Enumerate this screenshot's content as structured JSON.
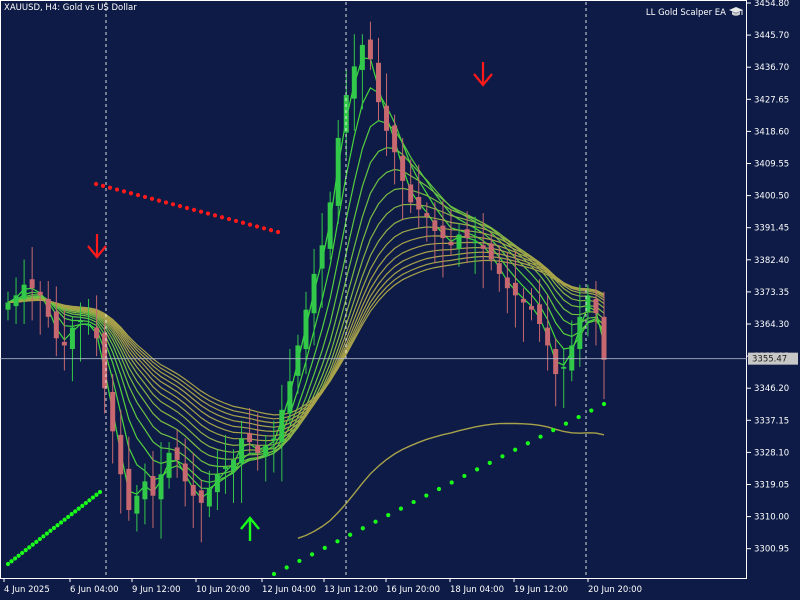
{
  "header": {
    "symbol_title": "XAUUSD, H4:  Gold vs US Dollar",
    "ea_label": "LL Gold Scalper EA",
    "ea_icon": "graduation-cap-icon"
  },
  "crosshair_price_label": "3355.47",
  "colors": {
    "background": "#0d1b46",
    "grid_frame": "#ffffff",
    "bull_candle": "#32c84a",
    "bear_candle": "#c76870",
    "ma_fast": "#3ddc3d",
    "ma_slow": "#a8a24a",
    "sell_dots": "#ff1a1a",
    "buy_dots": "#1aff1a",
    "sell_arrow": "#ff1a1a",
    "buy_arrow": "#1aff1a"
  },
  "chart_data": {
    "type": "candlestick",
    "symbol": "XAUUSD",
    "timeframe": "H4",
    "y_ticks": [
      "3454.80",
      "3445.70",
      "3436.70",
      "3427.65",
      "3418.60",
      "3409.55",
      "3400.50",
      "3391.45",
      "3382.40",
      "3373.35",
      "3364.30",
      "3355.25",
      "3346.20",
      "3337.15",
      "3328.10",
      "3319.05",
      "3310.00",
      "3300.95"
    ],
    "x_ticks": [
      "4 Jun 2025",
      "6 Jun 04:00",
      "9 Jun 12:00",
      "10 Jun 20:00",
      "12 Jun 04:00",
      "13 Jun 12:00",
      "16 Jun 20:00",
      "18 Jun 04:00",
      "19 Jun 12:00",
      "20 Jun 20:00"
    ],
    "ylim": [
      3295,
      3456
    ],
    "close_prices": [
      3372,
      3374,
      3377,
      3376,
      3374,
      3368,
      3362,
      3360,
      3365,
      3367,
      3366,
      3362,
      3348,
      3336,
      3324,
      3314,
      3318,
      3322,
      3318,
      3324,
      3330,
      3328,
      3322,
      3318,
      3316,
      3320,
      3324,
      3326,
      3328,
      3334,
      3333,
      3330,
      3332,
      3334,
      3342,
      3350,
      3360,
      3370,
      3380,
      3388,
      3400,
      3418,
      3430,
      3438,
      3444,
      3440,
      3428,
      3420,
      3414,
      3406,
      3400,
      3398,
      3396,
      3392,
      3390,
      3388,
      3391,
      3390,
      3389,
      3387,
      3384,
      3380,
      3376,
      3374,
      3372,
      3370,
      3366,
      3360,
      3352,
      3354,
      3360,
      3368,
      3374,
      3369,
      3356
    ],
    "moving_averages": {
      "count": 15,
      "fast_color": "#3ddc3d",
      "slow_color": "#a8a24a"
    },
    "sell_signal_dots": {
      "start": [
        "6 Jun 04:00",
        3401
      ],
      "end": [
        "12 Jun 04:00",
        3389
      ]
    },
    "buy_signal_dots": {
      "start": [
        "4 Jun 2025",
        3300
      ],
      "end": [
        "20 Jun 20:00",
        3342
      ]
    },
    "sell_arrows": [
      [
        "6 Jun 04:00",
        3386
      ],
      [
        "17 Jun 04:00",
        3435
      ]
    ],
    "buy_arrows": [
      [
        "11 Jun 04:00",
        3308
      ]
    ],
    "vertical_separators": [
      "6 Jun 04:00",
      "13 Jun 12:00",
      "20 Jun 20:00"
    ],
    "crosshair_price": 3355.47,
    "grid": false
  }
}
